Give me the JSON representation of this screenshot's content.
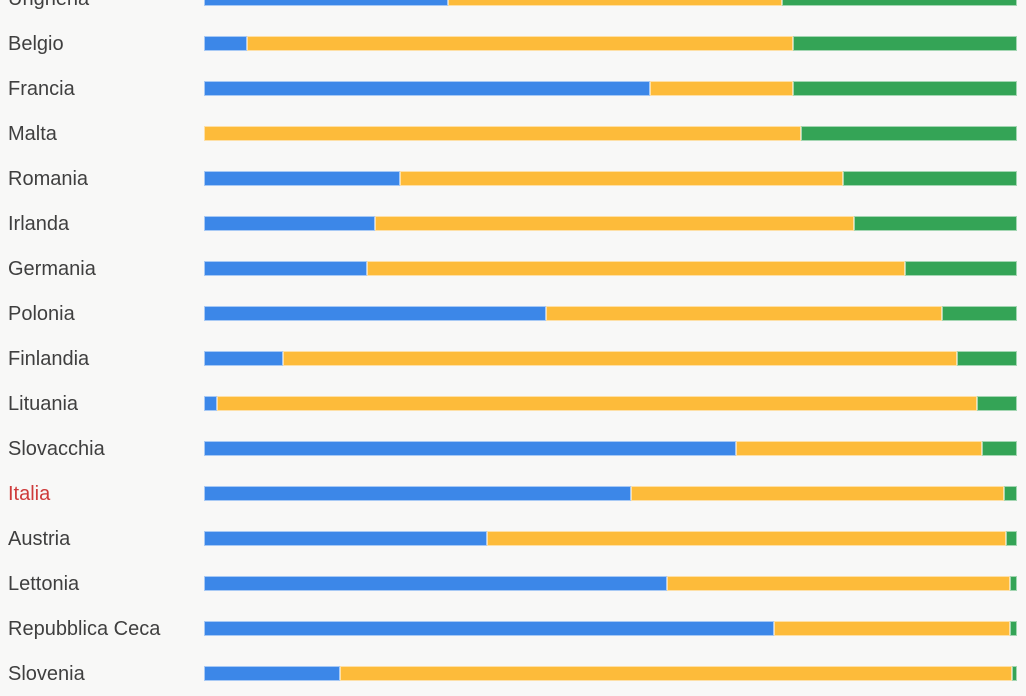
{
  "page": {
    "background_color": "#f8f8f7",
    "label_color": "#3f3f3f",
    "highlight_label_color": "#ce3b3b"
  },
  "chart_data": {
    "type": "bar",
    "orientation": "horizontal",
    "stacked": true,
    "unit": "percent",
    "xlim": [
      0,
      100
    ],
    "axes_visible": false,
    "grid": false,
    "legend_visible": false,
    "highlighted_category": "Italia",
    "note": "Top row (Ungheria) and bottom row (Slovenia) are partially cropped by the viewport; segment values estimated from bar lengths as % of full track width",
    "categories": [
      "Ungheria",
      "Belgio",
      "Francia",
      "Malta",
      "Romania",
      "Irlanda",
      "Germania",
      "Polonia",
      "Finlandia",
      "Lituania",
      "Slovacchia",
      "Italia",
      "Austria",
      "Lettonia",
      "Repubblica Ceca",
      "Slovenia"
    ],
    "series": [
      {
        "name": "blue",
        "color": "#3c87e8",
        "values": [
          30.0,
          5.3,
          54.9,
          0,
          24.1,
          21.0,
          20.0,
          42.1,
          9.7,
          1.6,
          65.4,
          52.5,
          34.8,
          57.0,
          70.1,
          16.7
        ]
      },
      {
        "name": "yellow",
        "color": "#fdbb3a",
        "values": [
          41.1,
          67.2,
          17.6,
          73.4,
          54.5,
          59.0,
          66.2,
          48.7,
          82.9,
          93.5,
          30.3,
          45.9,
          63.8,
          42.1,
          29.0,
          82.7
        ]
      },
      {
        "name": "green",
        "color": "#34a456",
        "values": [
          28.9,
          27.5,
          27.5,
          26.6,
          21.4,
          20.0,
          13.8,
          9.2,
          7.4,
          4.9,
          4.3,
          1.6,
          1.4,
          0.9,
          0.9,
          0.6
        ]
      }
    ]
  }
}
